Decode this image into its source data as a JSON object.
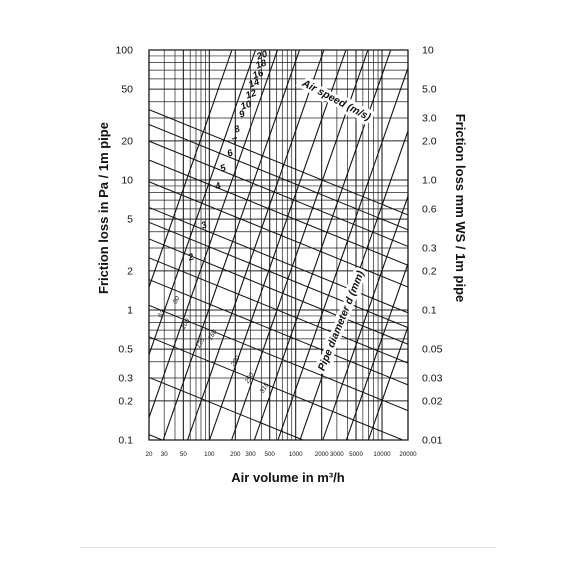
{
  "chart_data": {
    "type": "line",
    "xlabel": "Air volume in m³/h",
    "ylabel": "Friction loss in Pa / 1m pipe",
    "ylabel_right": "Friction loss mm WS / 1m pipe",
    "x_scale": "log",
    "y_scale": "log",
    "xlim": [
      20,
      20000
    ],
    "ylim": [
      0.1,
      100
    ],
    "grid": true,
    "x_ticks": [
      {
        "v": 20,
        "label": "20"
      },
      {
        "v": 30,
        "label": "30"
      },
      {
        "v": 50,
        "label": "50"
      },
      {
        "v": 100,
        "label": "100"
      },
      {
        "v": 200,
        "label": "200"
      },
      {
        "v": 300,
        "label": "300"
      },
      {
        "v": 500,
        "label": "500"
      },
      {
        "v": 1000,
        "label": "1000"
      },
      {
        "v": 2000,
        "label": "2000"
      },
      {
        "v": 3000,
        "label": "3000"
      },
      {
        "v": 5000,
        "label": "5000"
      },
      {
        "v": 10000,
        "label": "10000"
      },
      {
        "v": 20000,
        "label": "20000"
      }
    ],
    "y_ticks_left": [
      {
        "v": 100,
        "label": "100"
      },
      {
        "v": 50,
        "label": "50"
      },
      {
        "v": 20,
        "label": "20"
      },
      {
        "v": 10,
        "label": "10"
      },
      {
        "v": 5,
        "label": "5"
      },
      {
        "v": 2,
        "label": "2"
      },
      {
        "v": 1,
        "label": "1"
      },
      {
        "v": 0.5,
        "label": "0.5"
      },
      {
        "v": 0.3,
        "label": "0.3"
      },
      {
        "v": 0.2,
        "label": "0.2"
      },
      {
        "v": 0.1,
        "label": "0.1"
      }
    ],
    "y_ticks_right": [
      {
        "v": 100,
        "label": "10"
      },
      {
        "v": 50,
        "label": "5.0"
      },
      {
        "v": 30,
        "label": "3.0"
      },
      {
        "v": 20,
        "label": "2.0"
      },
      {
        "v": 10,
        "label": "1.0"
      },
      {
        "v": 6,
        "label": "0.6"
      },
      {
        "v": 3,
        "label": "0.3"
      },
      {
        "v": 2,
        "label": "0.2"
      },
      {
        "v": 1,
        "label": "0.1"
      },
      {
        "v": 0.5,
        "label": "0.05"
      },
      {
        "v": 0.3,
        "label": "0.03"
      },
      {
        "v": 0.2,
        "label": "0.02"
      },
      {
        "v": 0.1,
        "label": "0.01"
      }
    ],
    "speed_family_label": "Air speed (m/s)",
    "diameter_family_label": "Pipe diameter d (mm)",
    "speed_lines": [
      {
        "label": "20",
        "v": 20
      },
      {
        "label": "18",
        "v": 18
      },
      {
        "label": "16",
        "v": 16
      },
      {
        "label": "14",
        "v": 14
      },
      {
        "label": "12",
        "v": 12
      },
      {
        "label": "10",
        "v": 10
      },
      {
        "label": "9",
        "v": 9
      },
      {
        "label": "8",
        "v": 8
      },
      {
        "label": "7",
        "v": 7
      },
      {
        "label": "6",
        "v": 6
      },
      {
        "label": "5",
        "v": 5
      },
      {
        "label": "4",
        "v": 4
      },
      {
        "label": "3",
        "v": 3
      },
      {
        "label": "2",
        "v": 2
      }
    ],
    "diameter_lines": [
      {
        "label": "63",
        "d": 63
      },
      {
        "label": "80",
        "d": 80
      },
      {
        "label": "100",
        "d": 100
      },
      {
        "label": "125",
        "d": 125
      },
      {
        "label": "160",
        "d": 160
      },
      {
        "label": "200",
        "d": 200
      },
      {
        "label": "250",
        "d": 250
      },
      {
        "label": "315",
        "d": 315
      },
      {
        "label": "400",
        "d": 400
      },
      {
        "label": "500",
        "d": 500
      },
      {
        "label": "630",
        "d": 630
      },
      {
        "label": "800",
        "d": 800
      },
      {
        "label": "1000",
        "d": 1000
      }
    ]
  }
}
